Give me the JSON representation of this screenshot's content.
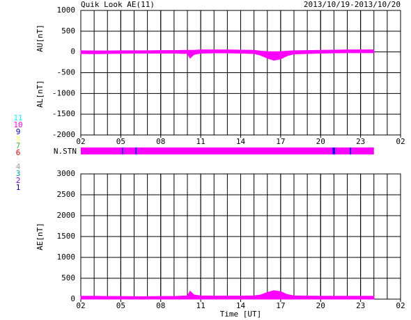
{
  "header": {
    "title": "Quik Look AE(11)",
    "date": "2013/10/19-2013/10/20"
  },
  "station_legend": {
    "labels": [
      "11",
      "10",
      "9",
      "8",
      "7",
      "6",
      "5",
      "4",
      "3",
      "2",
      "1"
    ],
    "colors": [
      "#00ffff",
      "#ff00ff",
      "#0000ff",
      "#ffff80",
      "#40c040",
      "#ff0000",
      "#f0f0f0",
      "#a0a0a0",
      "#00a0a0",
      "#8000ff",
      "#0000c0"
    ]
  },
  "n_stn": {
    "label": "N.STN",
    "x": [
      0,
      3.1,
      3.2,
      4.1,
      4.2,
      18.9,
      19.1,
      20.2,
      20.3
    ],
    "values": [
      10,
      9,
      10,
      9,
      10,
      9,
      10,
      9,
      10
    ]
  },
  "chart_data": [
    {
      "type": "area",
      "ylim": [
        -2000,
        1000
      ],
      "yticks": [
        1000,
        500,
        0,
        -500,
        -1000,
        -1500,
        -2000
      ],
      "xlim": [
        0,
        24
      ],
      "xticks": [
        {
          "value": 0,
          "label": "02"
        },
        {
          "value": 3,
          "label": "05"
        },
        {
          "value": 6,
          "label": "08"
        },
        {
          "value": 9,
          "label": "11"
        },
        {
          "value": 12,
          "label": "14"
        },
        {
          "value": 15,
          "label": "17"
        },
        {
          "value": 18,
          "label": "20"
        },
        {
          "value": 21,
          "label": "23"
        },
        {
          "value": 24,
          "label": "02"
        }
      ],
      "x": [
        0,
        1,
        2,
        3,
        4,
        5,
        6,
        7,
        8,
        8.2,
        8.5,
        9,
        10,
        11,
        12,
        13,
        13.5,
        14,
        14.5,
        15,
        15.5,
        16,
        17,
        18,
        19,
        20,
        21,
        22
      ],
      "series": [
        {
          "name": "AU[nT]",
          "color": "#ff00ff",
          "values": [
            30,
            25,
            25,
            30,
            30,
            30,
            35,
            35,
            40,
            40,
            40,
            50,
            50,
            50,
            45,
            40,
            20,
            10,
            5,
            10,
            20,
            30,
            35,
            40,
            45,
            50,
            50,
            50
          ]
        },
        {
          "name": "AL[nT]",
          "color": "#ff00ff",
          "values": [
            -40,
            -45,
            -40,
            -35,
            -30,
            -30,
            -30,
            -30,
            -40,
            -150,
            -60,
            -30,
            -25,
            -25,
            -30,
            -40,
            -80,
            -150,
            -200,
            -170,
            -90,
            -50,
            -40,
            -30,
            -25,
            -20,
            -20,
            -20
          ]
        }
      ]
    },
    {
      "type": "area",
      "ylim": [
        0,
        3000
      ],
      "yticks": [
        3000,
        2500,
        2000,
        1500,
        1000,
        500,
        0
      ],
      "xlabel": "Time [UT]",
      "xlim": [
        0,
        24
      ],
      "xticks": [
        {
          "value": 0,
          "label": "02"
        },
        {
          "value": 3,
          "label": "05"
        },
        {
          "value": 6,
          "label": "08"
        },
        {
          "value": 9,
          "label": "11"
        },
        {
          "value": 12,
          "label": "14"
        },
        {
          "value": 15,
          "label": "17"
        },
        {
          "value": 18,
          "label": "20"
        },
        {
          "value": 21,
          "label": "23"
        },
        {
          "value": 24,
          "label": "02"
        }
      ],
      "x": [
        0,
        1,
        2,
        3,
        4,
        5,
        6,
        7,
        8,
        8.2,
        8.5,
        9,
        10,
        11,
        12,
        13,
        13.5,
        14,
        14.5,
        15,
        15.5,
        16,
        17,
        18,
        19,
        20,
        21,
        22
      ],
      "series": [
        {
          "name": "AE[nT]",
          "color": "#ff00ff",
          "values": [
            70,
            70,
            65,
            65,
            60,
            60,
            65,
            65,
            80,
            190,
            100,
            80,
            75,
            75,
            75,
            80,
            100,
            160,
            205,
            180,
            110,
            80,
            75,
            70,
            70,
            70,
            70,
            70
          ]
        }
      ]
    }
  ]
}
